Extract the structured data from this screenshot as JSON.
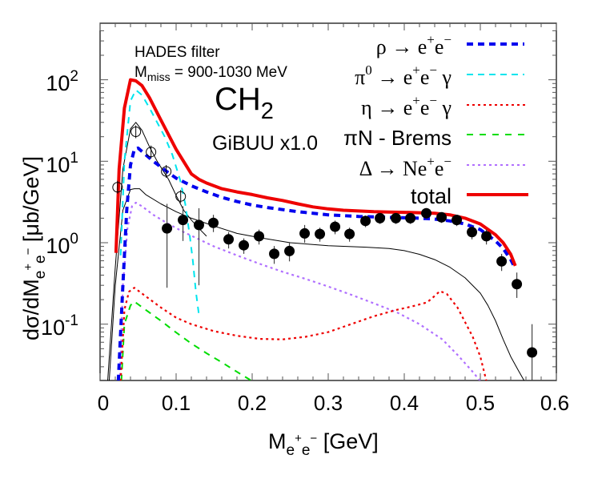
{
  "chart_data": {
    "type": "line",
    "title": "CH2",
    "annotations": [
      "HADES filter",
      "M_miss = 900-1030 MeV",
      "CH2",
      "GiBUU x1.0"
    ],
    "xlabel": "M_{e+e-} [GeV]",
    "ylabel": "dσ/dM_{e+e-} [μb/GeV]",
    "xlim": [
      0,
      0.6
    ],
    "ylim": [
      0.02,
      500
    ],
    "yscale": "log",
    "grid": false,
    "legend_position": "upper right",
    "x_ticks": [
      "0",
      "0.1",
      "0.2",
      "0.3",
      "0.4",
      "0.5",
      "0.6"
    ],
    "y_ticks": [
      "10^-1",
      "10^0",
      "10^1",
      "10^2"
    ],
    "series": [
      {
        "name": "ρ → e+e−",
        "style": "dashed-thick",
        "color": "#0000ee",
        "x": [
          0.024,
          0.03,
          0.035,
          0.04,
          0.045,
          0.05,
          0.06,
          0.07,
          0.08,
          0.09,
          0.1,
          0.12,
          0.14,
          0.16,
          0.18,
          0.2,
          0.22,
          0.24,
          0.26,
          0.28,
          0.3,
          0.32,
          0.34,
          0.36,
          0.38,
          0.4,
          0.42,
          0.44,
          0.46,
          0.48,
          0.5,
          0.52,
          0.53,
          0.54,
          0.546
        ],
        "y": [
          0.02,
          0.3,
          2.5,
          9,
          14,
          14.5,
          12,
          10,
          8.5,
          7.2,
          6.2,
          5.0,
          4.2,
          3.6,
          3.2,
          2.9,
          2.7,
          2.55,
          2.4,
          2.3,
          2.2,
          2.15,
          2.1,
          2.08,
          2.05,
          2.02,
          2.0,
          1.95,
          1.85,
          1.7,
          1.45,
          1.05,
          0.85,
          0.62,
          0.48
        ]
      },
      {
        "name": "π0 → e+e− γ",
        "style": "dashed",
        "color": "#00e5ee",
        "x": [
          0.027,
          0.032,
          0.04,
          0.047,
          0.055,
          0.065,
          0.075,
          0.085,
          0.095,
          0.105,
          0.112,
          0.118,
          0.122,
          0.126,
          0.13
        ],
        "y": [
          0.7,
          10,
          55,
          75,
          65,
          45,
          30,
          20,
          12,
          6,
          3.0,
          1.2,
          0.6,
          0.25,
          0.13
        ]
      },
      {
        "name": "η → e+e− γ",
        "style": "dotted",
        "color": "#ee0000",
        "x": [
          0.027,
          0.032,
          0.038,
          0.045,
          0.06,
          0.08,
          0.1,
          0.12,
          0.15,
          0.18,
          0.21,
          0.24,
          0.27,
          0.3,
          0.33,
          0.36,
          0.39,
          0.41,
          0.43,
          0.437,
          0.447,
          0.456,
          0.47,
          0.49,
          0.5,
          0.508
        ],
        "y": [
          0.02,
          0.15,
          0.25,
          0.28,
          0.22,
          0.16,
          0.12,
          0.1,
          0.082,
          0.072,
          0.066,
          0.065,
          0.07,
          0.08,
          0.1,
          0.125,
          0.15,
          0.165,
          0.185,
          0.21,
          0.255,
          0.235,
          0.16,
          0.07,
          0.04,
          0.02
        ]
      },
      {
        "name": "πN - Brems",
        "style": "dashed",
        "color": "#00dd00",
        "x": [
          0.028,
          0.032,
          0.04,
          0.045,
          0.06,
          0.08,
          0.1,
          0.12,
          0.14,
          0.16,
          0.18,
          0.2
        ],
        "y": [
          0.02,
          0.1,
          0.17,
          0.19,
          0.15,
          0.11,
          0.079,
          0.058,
          0.044,
          0.034,
          0.026,
          0.02
        ]
      },
      {
        "name": "Δ → Ne+e−",
        "style": "dotted",
        "color": "#b070ff",
        "x": [
          0.026,
          0.03,
          0.036,
          0.042,
          0.047,
          0.055,
          0.07,
          0.09,
          0.11,
          0.13,
          0.15,
          0.18,
          0.21,
          0.24,
          0.27,
          0.3,
          0.33,
          0.36,
          0.39,
          0.42,
          0.45,
          0.47,
          0.49,
          0.5
        ],
        "y": [
          0.02,
          0.3,
          1.5,
          2.8,
          3.1,
          2.8,
          2.2,
          1.7,
          1.35,
          1.1,
          0.9,
          0.7,
          0.55,
          0.44,
          0.36,
          0.29,
          0.23,
          0.18,
          0.14,
          0.1,
          0.065,
          0.042,
          0.026,
          0.02
        ]
      },
      {
        "name": "total",
        "style": "solid-thick",
        "color": "#ee0000",
        "x": [
          0.021,
          0.025,
          0.032,
          0.04,
          0.047,
          0.055,
          0.065,
          0.08,
          0.1,
          0.12,
          0.13,
          0.14,
          0.16,
          0.18,
          0.2,
          0.22,
          0.24,
          0.26,
          0.28,
          0.3,
          0.32,
          0.34,
          0.36,
          0.38,
          0.4,
          0.42,
          0.44,
          0.46,
          0.48,
          0.5,
          0.52,
          0.53,
          0.54,
          0.546
        ],
        "y": [
          0.75,
          8,
          45,
          100,
          97,
          85,
          60,
          32,
          14,
          7,
          6.0,
          5.4,
          4.6,
          4.2,
          3.9,
          3.55,
          3.3,
          3.0,
          2.75,
          2.6,
          2.5,
          2.45,
          2.4,
          2.38,
          2.36,
          2.33,
          2.3,
          2.2,
          2.0,
          1.7,
          1.25,
          1.0,
          0.72,
          0.52
        ]
      },
      {
        "name": "thin black (upper)",
        "style": "solid-thin",
        "color": "#000000",
        "x": [
          0.01,
          0.02,
          0.03,
          0.04,
          0.047,
          0.055,
          0.065,
          0.075,
          0.09,
          0.1,
          0.11,
          0.12,
          0.13,
          0.14
        ],
        "y": [
          0.02,
          0.5,
          8,
          25,
          30,
          24,
          15,
          10,
          6,
          3.8,
          2.5,
          1.9,
          1.5,
          1.2
        ]
      },
      {
        "name": "thin black (lower)",
        "style": "solid-thin",
        "color": "#000000",
        "x": [
          0.012,
          0.02,
          0.03,
          0.04,
          0.045,
          0.052,
          0.06,
          0.08,
          0.1,
          0.12,
          0.15,
          0.18,
          0.21,
          0.25,
          0.3,
          0.35,
          0.38,
          0.4,
          0.42,
          0.44,
          0.46,
          0.48,
          0.5,
          0.51,
          0.52,
          0.53,
          0.54,
          0.55,
          0.558
        ],
        "y": [
          0.02,
          0.3,
          2.5,
          4.5,
          4.6,
          4.6,
          3.9,
          3.0,
          2.4,
          2.0,
          1.6,
          1.3,
          1.15,
          1.0,
          0.92,
          0.88,
          0.85,
          0.8,
          0.72,
          0.62,
          0.5,
          0.37,
          0.24,
          0.17,
          0.11,
          0.065,
          0.04,
          0.027,
          0.02
        ]
      }
    ],
    "data_points": {
      "filled": {
        "x": [
          0.088,
          0.109,
          0.13,
          0.149,
          0.169,
          0.189,
          0.209,
          0.229,
          0.249,
          0.269,
          0.289,
          0.309,
          0.328,
          0.349,
          0.368,
          0.389,
          0.408,
          0.429,
          0.449,
          0.469,
          0.489,
          0.508,
          0.528,
          0.548,
          0.568
        ],
        "y": [
          1.5,
          1.9,
          1.65,
          1.75,
          1.1,
          0.93,
          1.2,
          0.73,
          0.79,
          1.3,
          1.28,
          1.57,
          1.28,
          1.85,
          2.0,
          2.0,
          2.0,
          2.3,
          2.05,
          1.9,
          1.35,
          1.2,
          0.59,
          0.31,
          0.045
        ],
        "err_low": [
          1.22,
          0.85,
          1.35,
          0.4,
          0.25,
          0.2,
          0.25,
          0.18,
          0.2,
          0.3,
          0.25,
          0.3,
          0.25,
          0.3,
          0.3,
          0.3,
          0.3,
          0.35,
          0.3,
          0.3,
          0.25,
          0.25,
          0.14,
          0.1,
          0.03
        ],
        "err_high": [
          1.5,
          0.9,
          1.0,
          0.45,
          0.25,
          0.2,
          0.25,
          0.18,
          0.2,
          0.35,
          0.25,
          0.3,
          0.25,
          0.3,
          0.3,
          0.3,
          0.3,
          0.35,
          0.3,
          0.3,
          0.25,
          0.25,
          0.14,
          0.12,
          0.055
        ]
      },
      "open": {
        "x": [
          0.023,
          0.047,
          0.067,
          0.087,
          0.106
        ],
        "y": [
          4.8,
          23,
          13,
          7.5,
          3.7
        ]
      }
    }
  },
  "labels": {
    "hades": "HADES filter",
    "mmiss_main": "M",
    "mmiss_sub": "miss",
    "mmiss_rest": " = 900-1030 MeV",
    "ch_main": "CH",
    "ch_sub": "2",
    "gibuu": "GiBUU x1.0",
    "xaxis_main": "M",
    "xaxis_sub": "e",
    "xaxis_sup1": "+",
    "xaxis_sub2": "e",
    "xaxis_sup2": "−",
    "xaxis_unit": " [GeV]",
    "yaxis_prefix": "dσ/dM",
    "yaxis_unit": " [μb/GeV]",
    "legend": [
      {
        "main": "ρ → e",
        "sup1": "+",
        "mid": "e",
        "sup2": "−",
        "tail": ""
      },
      {
        "main": "π",
        "sup0": "0",
        "mid0": " → e",
        "sup1": "+",
        "mid": "e",
        "sup2": "−",
        "tail": " γ"
      },
      {
        "main": "η → e",
        "sup1": "+",
        "mid": "e",
        "sup2": "−",
        "tail": " γ"
      },
      {
        "main": "πN - Brems"
      },
      {
        "main": "Δ → Ne",
        "sup1": "+",
        "mid": "e",
        "sup2": "−",
        "tail": ""
      },
      {
        "main": "total"
      }
    ],
    "xticks": [
      "0",
      "0.1",
      "0.2",
      "0.3",
      "0.4",
      "0.5",
      "0.6"
    ],
    "yticks": [
      {
        "base": "10",
        "exp": "2"
      },
      {
        "base": "10",
        "exp": "1"
      },
      {
        "base": "10",
        "exp": "0"
      },
      {
        "base": "10",
        "exp": "-1"
      }
    ]
  },
  "colors": {
    "rho": "#0000ee",
    "pi0": "#00e5ee",
    "eta": "#ee0000",
    "brems": "#00dd00",
    "delta": "#b070ff",
    "total": "#ee0000",
    "data": "#000000"
  }
}
